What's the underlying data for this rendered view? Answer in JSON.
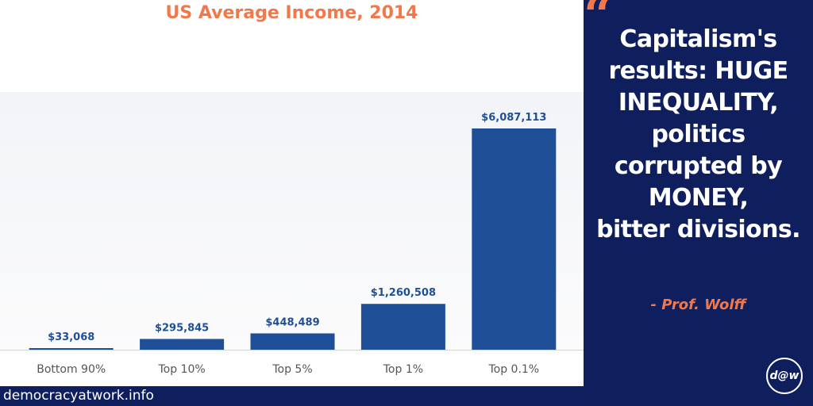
{
  "chart_data": {
    "type": "bar",
    "title": "US Average Income, 2014",
    "categories": [
      "Bottom 90%",
      "Top 10%",
      "Top 5%",
      "Top 1%",
      "Top 0.1%"
    ],
    "values": [
      33068,
      295845,
      448489,
      1260508,
      6087113
    ],
    "data_labels": [
      "$33,068",
      "$295,845",
      "$448,489",
      "$1,260,508",
      "$6,087,113"
    ],
    "xlabel": "",
    "ylabel": "",
    "ylim": [
      0,
      6087113
    ],
    "grid": false,
    "legend": "none",
    "bar_color": "#1f4f96",
    "label_color": "#1f4f96",
    "tick_color": "#555555"
  },
  "quote": {
    "lines": [
      "Capitalism's",
      "results: HUGE",
      "INEQUALITY,",
      "politics",
      "corrupted by",
      "MONEY,",
      "bitter divisions."
    ],
    "author": "- Prof. Wolff",
    "mark": "“"
  },
  "footer": {
    "url": "democracyatwork.info"
  },
  "logo": {
    "text": "d@w"
  },
  "colors": {
    "accent": "#f0784a",
    "navy": "#0f1f5e",
    "bar": "#1f4f96"
  }
}
